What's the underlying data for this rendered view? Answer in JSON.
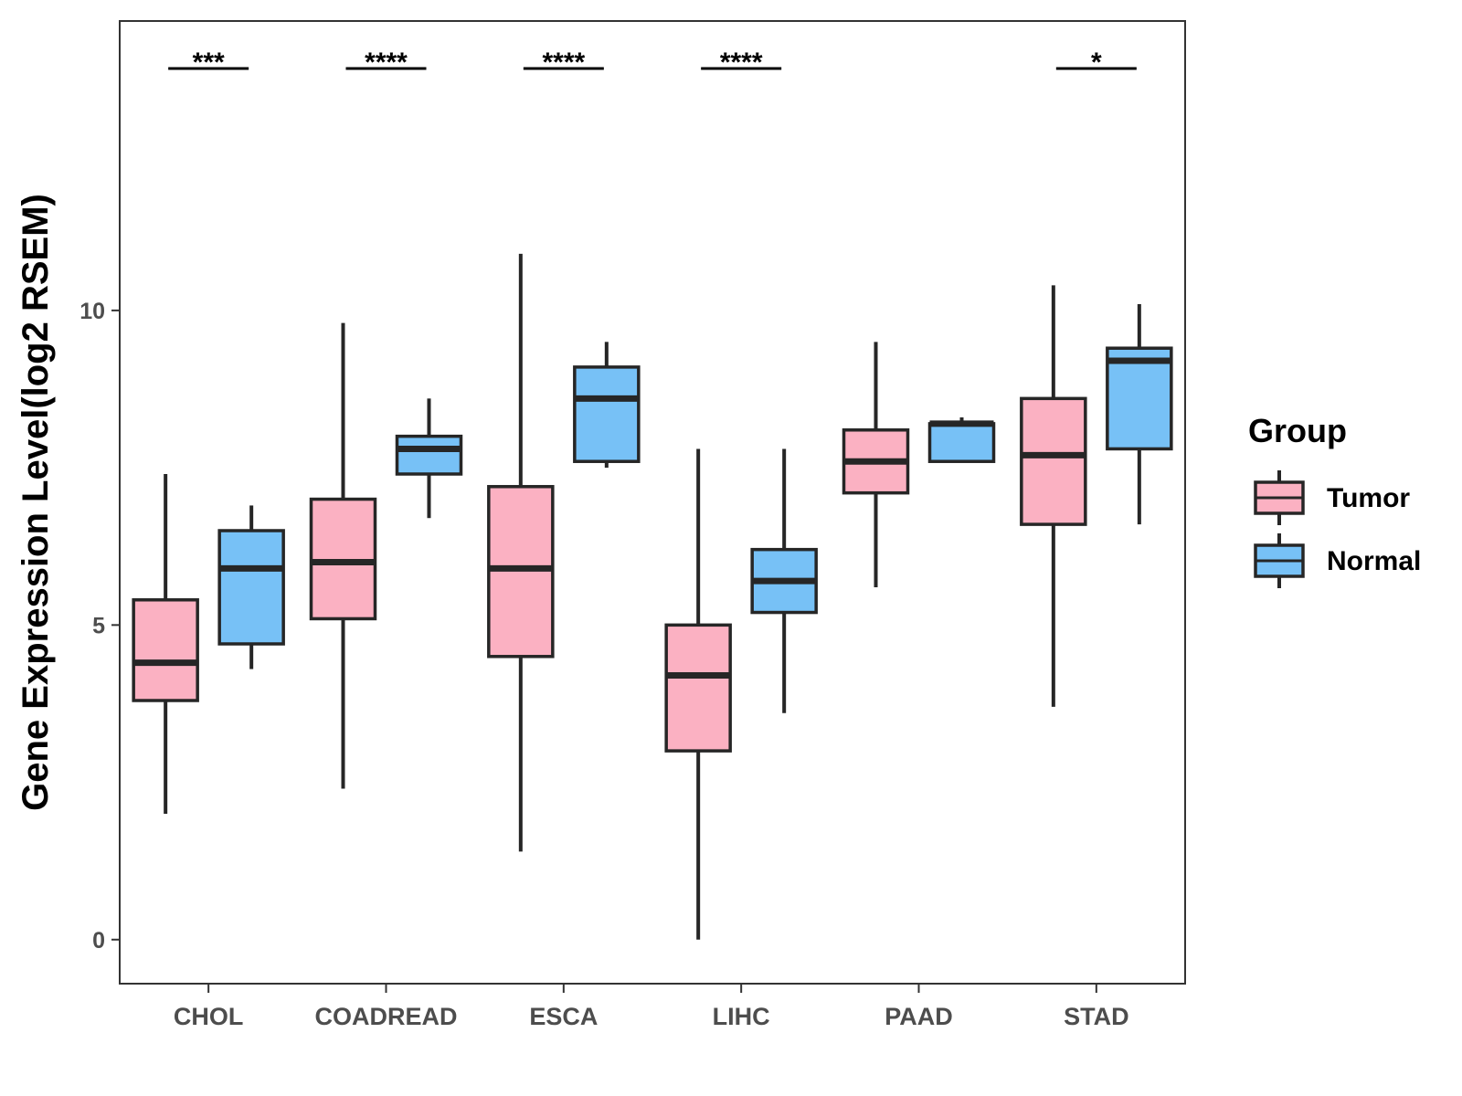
{
  "chart_data": {
    "type": "boxplot",
    "title": "",
    "xlabel": "",
    "ylabel": "Gene Expression Level(log2 RSEM)",
    "ylim": [
      -0.7,
      14.6
    ],
    "yticks": [
      0,
      5,
      10
    ],
    "ytick_labels": [
      "0",
      "5",
      "10"
    ],
    "categories": [
      "CHOL",
      "COADREAD",
      "ESCA",
      "LIHC",
      "PAAD",
      "STAD"
    ],
    "grid": false,
    "legend": {
      "title": "Group",
      "position": "right"
    },
    "series": [
      {
        "name": "Tumor",
        "color": "#FBB1C2",
        "boxes": [
          {
            "min": 2.0,
            "q1": 3.8,
            "median": 4.4,
            "q3": 5.4,
            "max": 7.4
          },
          {
            "min": 2.4,
            "q1": 5.1,
            "median": 6.0,
            "q3": 7.0,
            "max": 9.8
          },
          {
            "min": 1.4,
            "q1": 4.5,
            "median": 5.9,
            "q3": 7.2,
            "max": 10.9
          },
          {
            "min": 0.0,
            "q1": 3.0,
            "median": 4.2,
            "q3": 5.0,
            "max": 7.8
          },
          {
            "min": 5.6,
            "q1": 7.1,
            "median": 7.6,
            "q3": 8.1,
            "max": 9.5
          },
          {
            "min": 3.7,
            "q1": 6.6,
            "median": 7.7,
            "q3": 8.6,
            "max": 10.4
          }
        ]
      },
      {
        "name": "Normal",
        "color": "#77C1F6",
        "boxes": [
          {
            "min": 4.3,
            "q1": 4.7,
            "median": 5.9,
            "q3": 6.5,
            "max": 6.9
          },
          {
            "min": 6.7,
            "q1": 7.4,
            "median": 7.8,
            "q3": 8.0,
            "max": 8.6
          },
          {
            "min": 7.5,
            "q1": 7.6,
            "median": 8.6,
            "q3": 9.1,
            "max": 9.5
          },
          {
            "min": 3.6,
            "q1": 5.2,
            "median": 5.7,
            "q3": 6.2,
            "max": 7.8
          },
          {
            "min": 7.6,
            "q1": 7.6,
            "median": 8.2,
            "q3": 8.2,
            "max": 8.3
          },
          {
            "min": 6.6,
            "q1": 7.8,
            "median": 9.2,
            "q3": 9.4,
            "max": 10.1
          }
        ]
      }
    ],
    "significance": [
      "***",
      "****",
      "****",
      "****",
      "",
      "*"
    ]
  }
}
